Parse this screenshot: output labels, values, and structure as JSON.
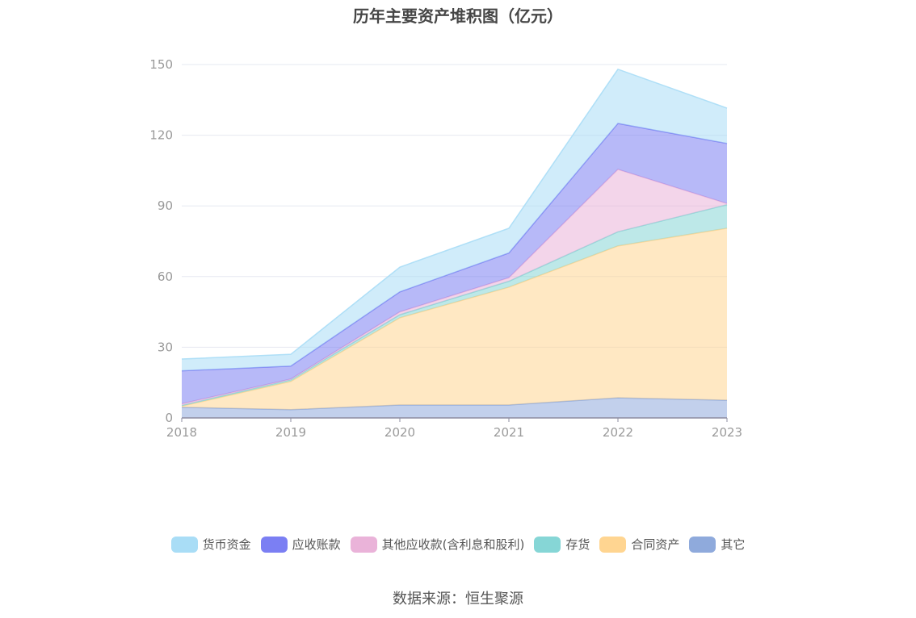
{
  "chart_data": {
    "type": "area",
    "stacked": true,
    "title": "历年主要资产堆积图（亿元）",
    "x": [
      "2018",
      "2019",
      "2020",
      "2021",
      "2022",
      "2023"
    ],
    "ylim": [
      0,
      150
    ],
    "yticks": [
      0,
      30,
      60,
      90,
      120,
      150
    ],
    "grid": true,
    "legend_position": "bottom",
    "series": [
      {
        "name": "其它",
        "color": "#8FAADC",
        "values": [
          4.5,
          3.5,
          5.5,
          5.5,
          8.5,
          7.5
        ]
      },
      {
        "name": "合同资产",
        "color": "#FFD591",
        "values": [
          0.5,
          12.0,
          37.0,
          50.0,
          64.5,
          73.0
        ]
      },
      {
        "name": "存货",
        "color": "#86D6D6",
        "values": [
          0.3,
          0.7,
          1.3,
          2.5,
          6.0,
          10.0
        ]
      },
      {
        "name": "其他应收款(含利息和股利)",
        "color": "#EAB3D9",
        "values": [
          0.7,
          0.3,
          1.2,
          1.5,
          26.5,
          0.5
        ]
      },
      {
        "name": "应收账款",
        "color": "#7B7FF3",
        "values": [
          14.0,
          5.5,
          8.5,
          10.5,
          19.5,
          25.5
        ]
      },
      {
        "name": "货币资金",
        "color": "#A9DDF6",
        "values": [
          5.0,
          5.0,
          10.5,
          10.5,
          23.0,
          15.0
        ]
      }
    ]
  },
  "legend_order": [
    "货币资金",
    "应收账款",
    "其他应收款(含利息和股利)",
    "存货",
    "合同资产",
    "其它"
  ],
  "source": "数据来源：恒生聚源"
}
